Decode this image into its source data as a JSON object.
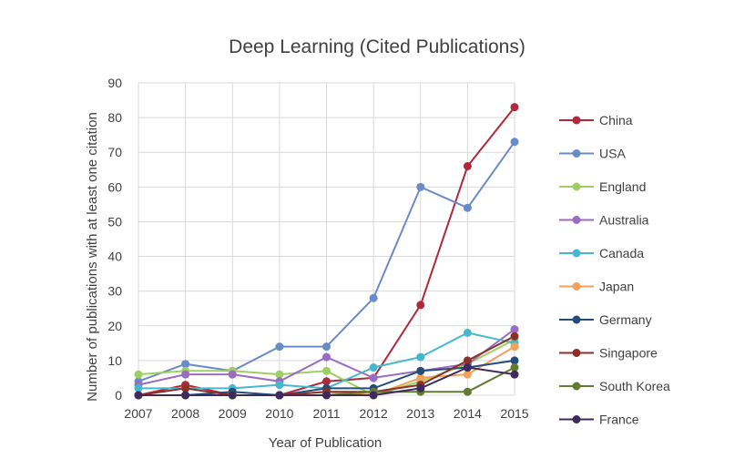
{
  "chart_data": {
    "type": "line",
    "title": "Deep Learning (Cited Publications)",
    "xlabel": "Year of Publication",
    "ylabel": "Number of publications with at least one citation",
    "ylim": [
      0,
      90
    ],
    "yticks": [
      "0",
      "10",
      "20",
      "30",
      "40",
      "50",
      "60",
      "70",
      "80",
      "90"
    ],
    "grid": true,
    "legend_position": "right",
    "x": [
      "2007",
      "2008",
      "2009",
      "2010",
      "2011",
      "2012",
      "2013",
      "2014",
      "2015"
    ],
    "series": [
      {
        "name": "China",
        "color": "#b0293a",
        "values": [
          0,
          3,
          0,
          0,
          4,
          5,
          26,
          66,
          83
        ]
      },
      {
        "name": "USA",
        "color": "#6a8cc6",
        "values": [
          4,
          9,
          7,
          14,
          14,
          28,
          60,
          54,
          73
        ]
      },
      {
        "name": "England",
        "color": "#9dcf63",
        "values": [
          6,
          7,
          7,
          6,
          7,
          0,
          4,
          9,
          16
        ]
      },
      {
        "name": "Australia",
        "color": "#9a6cc2",
        "values": [
          3,
          6,
          6,
          4,
          11,
          5,
          7,
          9,
          19
        ]
      },
      {
        "name": "Canada",
        "color": "#45b8cf",
        "values": [
          2,
          2,
          2,
          3,
          2,
          8,
          11,
          18,
          15
        ]
      },
      {
        "name": "Japan",
        "color": "#f5a05a",
        "values": [
          0,
          0,
          0,
          0,
          1,
          0,
          5,
          6,
          14
        ]
      },
      {
        "name": "Germany",
        "color": "#244c7a",
        "values": [
          0,
          0,
          1,
          0,
          2,
          2,
          7,
          8,
          10
        ]
      },
      {
        "name": "Singapore",
        "color": "#8c2f28",
        "values": [
          0,
          2,
          0,
          0,
          1,
          1,
          3,
          10,
          17
        ]
      },
      {
        "name": "South Korea",
        "color": "#627a32",
        "values": [
          0,
          0,
          0,
          0,
          0,
          1,
          1,
          1,
          8
        ]
      },
      {
        "name": "France",
        "color": "#3e2a5c",
        "values": [
          0,
          0,
          0,
          0,
          0,
          0,
          2,
          8,
          6
        ]
      }
    ]
  }
}
